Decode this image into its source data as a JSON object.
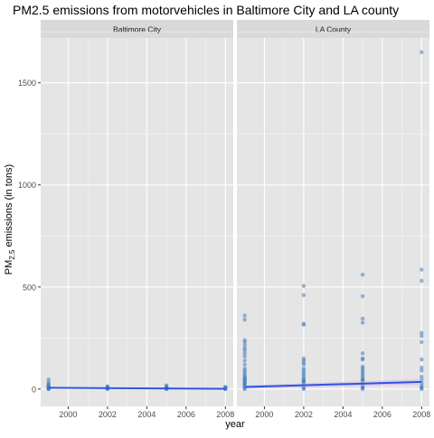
{
  "chart_data": {
    "type": "scatter",
    "title": "PM2.5 emissions from motorvehicles in Baltimore City and LA county",
    "ylabel_main": "PM",
    "ylabel_sub": "2.5",
    "ylabel_rest": " emissions (in tons)",
    "xlabel": "year",
    "xlim": [
      1998.6,
      2008.4
    ],
    "ylim": [
      -85,
      1720
    ],
    "x_ticks": [
      2000,
      2002,
      2004,
      2006,
      2008
    ],
    "y_ticks": [
      0,
      500,
      1000,
      1500
    ],
    "grid": true,
    "colors": {
      "point": "#3f7fbf",
      "line": "#2f55e0",
      "band": "#d9b9e6",
      "panel_bg": "#e5e5e5",
      "strip_bg": "#d9d9d9",
      "grid": "#ffffff"
    },
    "panels": [
      {
        "name": "Baltimore City",
        "points": [
          {
            "year": 1999,
            "value": 47
          },
          {
            "year": 1999,
            "value": 33
          },
          {
            "year": 1999,
            "value": 25
          },
          {
            "year": 1999,
            "value": 19
          },
          {
            "year": 1999,
            "value": 14
          },
          {
            "year": 1999,
            "value": 11
          },
          {
            "year": 1999,
            "value": 8
          },
          {
            "year": 1999,
            "value": 6
          },
          {
            "year": 1999,
            "value": 4
          },
          {
            "year": 1999,
            "value": 3
          },
          {
            "year": 1999,
            "value": 2
          },
          {
            "year": 1999,
            "value": 1
          },
          {
            "year": 1999,
            "value": 0
          },
          {
            "year": 2002,
            "value": 14
          },
          {
            "year": 2002,
            "value": 10
          },
          {
            "year": 2002,
            "value": 7
          },
          {
            "year": 2002,
            "value": 5
          },
          {
            "year": 2002,
            "value": 3
          },
          {
            "year": 2002,
            "value": 2
          },
          {
            "year": 2002,
            "value": 1
          },
          {
            "year": 2002,
            "value": 0
          },
          {
            "year": 2005,
            "value": 18
          },
          {
            "year": 2005,
            "value": 13
          },
          {
            "year": 2005,
            "value": 9
          },
          {
            "year": 2005,
            "value": 6
          },
          {
            "year": 2005,
            "value": 4
          },
          {
            "year": 2005,
            "value": 2
          },
          {
            "year": 2005,
            "value": 1
          },
          {
            "year": 2005,
            "value": 0
          },
          {
            "year": 2008,
            "value": 11
          },
          {
            "year": 2008,
            "value": 8
          },
          {
            "year": 2008,
            "value": 5
          },
          {
            "year": 2008,
            "value": 3
          },
          {
            "year": 2008,
            "value": 2
          },
          {
            "year": 2008,
            "value": 1
          },
          {
            "year": 2008,
            "value": 0
          }
        ],
        "trend": {
          "start": [
            1999,
            6
          ],
          "end": [
            2008,
            1
          ]
        },
        "band_halfwidth": 3
      },
      {
        "name": "LA County",
        "points": [
          {
            "year": 1999,
            "value": 360
          },
          {
            "year": 1999,
            "value": 340
          },
          {
            "year": 1999,
            "value": 240
          },
          {
            "year": 1999,
            "value": 230
          },
          {
            "year": 1999,
            "value": 215
          },
          {
            "year": 1999,
            "value": 200
          },
          {
            "year": 1999,
            "value": 190
          },
          {
            "year": 1999,
            "value": 175
          },
          {
            "year": 1999,
            "value": 160
          },
          {
            "year": 1999,
            "value": 140
          },
          {
            "year": 1999,
            "value": 120
          },
          {
            "year": 1999,
            "value": 100
          },
          {
            "year": 1999,
            "value": 90
          },
          {
            "year": 1999,
            "value": 80
          },
          {
            "year": 1999,
            "value": 70
          },
          {
            "year": 1999,
            "value": 60
          },
          {
            "year": 1999,
            "value": 55
          },
          {
            "year": 1999,
            "value": 50
          },
          {
            "year": 1999,
            "value": 45
          },
          {
            "year": 1999,
            "value": 40
          },
          {
            "year": 1999,
            "value": 35
          },
          {
            "year": 1999,
            "value": 30
          },
          {
            "year": 1999,
            "value": 25
          },
          {
            "year": 1999,
            "value": 20
          },
          {
            "year": 1999,
            "value": 15
          },
          {
            "year": 1999,
            "value": 10
          },
          {
            "year": 1999,
            "value": 5
          },
          {
            "year": 1999,
            "value": 0
          },
          {
            "year": 2002,
            "value": 505
          },
          {
            "year": 2002,
            "value": 460
          },
          {
            "year": 2002,
            "value": 320
          },
          {
            "year": 2002,
            "value": 315
          },
          {
            "year": 2002,
            "value": 150
          },
          {
            "year": 2002,
            "value": 140
          },
          {
            "year": 2002,
            "value": 130
          },
          {
            "year": 2002,
            "value": 120
          },
          {
            "year": 2002,
            "value": 100
          },
          {
            "year": 2002,
            "value": 90
          },
          {
            "year": 2002,
            "value": 80
          },
          {
            "year": 2002,
            "value": 70
          },
          {
            "year": 2002,
            "value": 60
          },
          {
            "year": 2002,
            "value": 50
          },
          {
            "year": 2002,
            "value": 45
          },
          {
            "year": 2002,
            "value": 40
          },
          {
            "year": 2002,
            "value": 35
          },
          {
            "year": 2002,
            "value": 30
          },
          {
            "year": 2002,
            "value": 25
          },
          {
            "year": 2002,
            "value": 20
          },
          {
            "year": 2002,
            "value": 15
          },
          {
            "year": 2002,
            "value": 10
          },
          {
            "year": 2002,
            "value": 5
          },
          {
            "year": 2002,
            "value": 0
          },
          {
            "year": 2005,
            "value": 560
          },
          {
            "year": 2005,
            "value": 455
          },
          {
            "year": 2005,
            "value": 345
          },
          {
            "year": 2005,
            "value": 325
          },
          {
            "year": 2005,
            "value": 175
          },
          {
            "year": 2005,
            "value": 150
          },
          {
            "year": 2005,
            "value": 145
          },
          {
            "year": 2005,
            "value": 110
          },
          {
            "year": 2005,
            "value": 100
          },
          {
            "year": 2005,
            "value": 90
          },
          {
            "year": 2005,
            "value": 80
          },
          {
            "year": 2005,
            "value": 70
          },
          {
            "year": 2005,
            "value": 60
          },
          {
            "year": 2005,
            "value": 50
          },
          {
            "year": 2005,
            "value": 45
          },
          {
            "year": 2005,
            "value": 40
          },
          {
            "year": 2005,
            "value": 35
          },
          {
            "year": 2005,
            "value": 30
          },
          {
            "year": 2005,
            "value": 25
          },
          {
            "year": 2005,
            "value": 20
          },
          {
            "year": 2005,
            "value": 15
          },
          {
            "year": 2005,
            "value": 10
          },
          {
            "year": 2005,
            "value": 5
          },
          {
            "year": 2005,
            "value": 0
          },
          {
            "year": 2008,
            "value": 1650
          },
          {
            "year": 2008,
            "value": 585
          },
          {
            "year": 2008,
            "value": 530
          },
          {
            "year": 2008,
            "value": 275
          },
          {
            "year": 2008,
            "value": 260
          },
          {
            "year": 2008,
            "value": 230
          },
          {
            "year": 2008,
            "value": 145
          },
          {
            "year": 2008,
            "value": 105
          },
          {
            "year": 2008,
            "value": 90
          },
          {
            "year": 2008,
            "value": 60
          },
          {
            "year": 2008,
            "value": 45
          },
          {
            "year": 2008,
            "value": 30
          },
          {
            "year": 2008,
            "value": 20
          },
          {
            "year": 2008,
            "value": 10
          },
          {
            "year": 2008,
            "value": 5
          },
          {
            "year": 2008,
            "value": 0
          }
        ],
        "trend": {
          "start": [
            1999,
            10
          ],
          "end": [
            2008,
            35
          ]
        },
        "band_halfwidth": 14
      }
    ]
  }
}
